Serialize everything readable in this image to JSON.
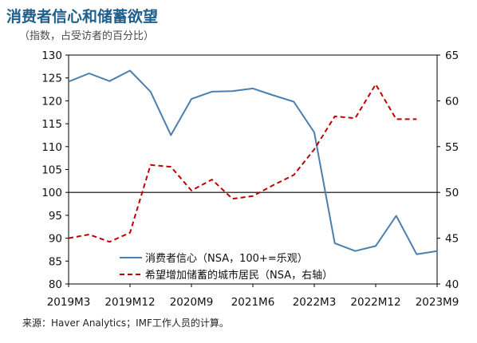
{
  "title": "消费者信心和储蓄欲望",
  "subtitle": "（指数，占受访者的百分比）",
  "source": "来源：Haver Analytics；IMF工作人员的计算。",
  "colors": {
    "series1": "#4a7faf",
    "series2": "#c00000",
    "refline": "#000000"
  },
  "chart_data": {
    "type": "line",
    "title": "消费者信心和储蓄欲望",
    "subtitle": "（指数，占受访者的百分比）",
    "x_tick_labels": [
      "2019M3",
      "2019M12",
      "2020M9",
      "2021M6",
      "2022M3",
      "2022M12",
      "2023M9"
    ],
    "y_left": {
      "ylim": [
        80,
        130
      ],
      "ticks": [
        80,
        85,
        90,
        95,
        100,
        105,
        110,
        115,
        120,
        125,
        130
      ]
    },
    "y_right": {
      "ylim": [
        40,
        65
      ],
      "ticks": [
        40,
        45,
        50,
        55,
        60,
        65
      ]
    },
    "reference_line": 100,
    "legend_placement": "bottom-left",
    "series": [
      {
        "name": "消费者信心（NSA，100+=乐观）",
        "axis": "left",
        "style": "solid",
        "x": [
          "2019M3",
          "2019M6",
          "2019M9",
          "2019M12",
          "2020M3",
          "2020M6",
          "2020M9",
          "2020M12",
          "2021M3",
          "2021M6",
          "2021M9",
          "2021M12",
          "2022M3",
          "2022M6",
          "2022M9",
          "2022M12",
          "2023M3",
          "2023M6",
          "2023M9"
        ],
        "values": [
          124.2,
          126.0,
          124.3,
          126.6,
          122.0,
          112.5,
          120.4,
          122.0,
          122.1,
          122.7,
          121.2,
          119.8,
          113.1,
          88.9,
          87.2,
          88.3,
          94.9,
          86.5,
          87.2
        ]
      },
      {
        "name": "希望增加储蓄的城市居民（NSA，右轴）",
        "axis": "right",
        "style": "dashed",
        "x": [
          "2019M3",
          "2019M6",
          "2019M9",
          "2019M12",
          "2020M3",
          "2020M6",
          "2020M9",
          "2020M12",
          "2021M3",
          "2021M6",
          "2021M9",
          "2021M12",
          "2022M3",
          "2022M6",
          "2022M9",
          "2022M12",
          "2023M3",
          "2023M6"
        ],
        "values": [
          45.0,
          45.4,
          44.6,
          45.6,
          53.0,
          52.8,
          50.2,
          51.4,
          49.3,
          49.6,
          50.8,
          51.9,
          54.7,
          58.3,
          58.1,
          61.8,
          58.0,
          58.0
        ]
      }
    ]
  }
}
